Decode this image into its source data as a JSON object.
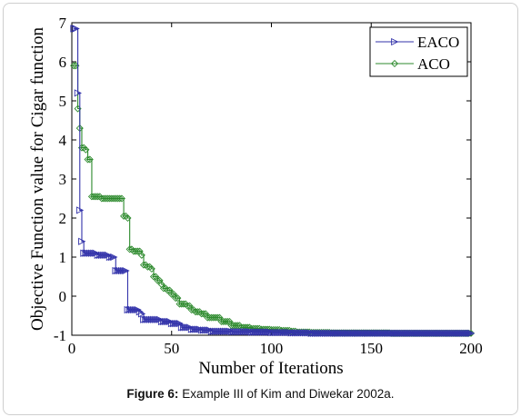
{
  "figure": {
    "caption_label": "Figure 6:",
    "caption_text": " Example III of Kim and Diwekar 2002a."
  },
  "chart_data": {
    "type": "line",
    "xlabel": "Number of Iterations",
    "ylabel": "Objective Function value for Cigar function",
    "xlim": [
      0,
      200
    ],
    "ylim": [
      -1,
      7
    ],
    "xticks": [
      "0",
      "50",
      "100",
      "150",
      "200"
    ],
    "yticks": [
      "-1",
      "0",
      "1",
      "2",
      "3",
      "4",
      "5",
      "6",
      "7"
    ],
    "legend_position": "top-right",
    "series": [
      {
        "name": "EACO",
        "color": "#3333aa",
        "marker": "triangle-right",
        "points": [
          [
            1,
            6.85
          ],
          [
            2,
            6.85
          ],
          [
            3,
            5.2
          ],
          [
            4,
            2.2
          ],
          [
            5,
            1.4
          ],
          [
            6,
            1.1
          ],
          [
            8,
            1.1
          ],
          [
            12,
            1.1
          ],
          [
            13,
            1.05
          ],
          [
            18,
            1.05
          ],
          [
            19,
            1.0
          ],
          [
            21,
            1.0
          ],
          [
            22,
            0.65
          ],
          [
            27,
            0.65
          ],
          [
            28,
            -0.35
          ],
          [
            33,
            -0.35
          ],
          [
            34,
            -0.4
          ],
          [
            35,
            -0.45
          ],
          [
            36,
            -0.6
          ],
          [
            40,
            -0.6
          ],
          [
            45,
            -0.65
          ],
          [
            50,
            -0.7
          ],
          [
            55,
            -0.8
          ],
          [
            60,
            -0.85
          ],
          [
            65,
            -0.87
          ],
          [
            70,
            -0.9
          ],
          [
            75,
            -0.9
          ],
          [
            80,
            -0.91
          ],
          [
            90,
            -0.92
          ],
          [
            100,
            -0.93
          ],
          [
            110,
            -0.94
          ],
          [
            120,
            -0.95
          ],
          [
            140,
            -0.95
          ],
          [
            160,
            -0.95
          ],
          [
            180,
            -0.95
          ],
          [
            200,
            -0.95
          ]
        ]
      },
      {
        "name": "ACO",
        "color": "#2d8a2d",
        "marker": "diamond",
        "points": [
          [
            1,
            5.9
          ],
          [
            2,
            5.9
          ],
          [
            3,
            4.8
          ],
          [
            4,
            4.3
          ],
          [
            5,
            3.8
          ],
          [
            7,
            3.75
          ],
          [
            8,
            3.5
          ],
          [
            9,
            3.5
          ],
          [
            10,
            2.55
          ],
          [
            12,
            2.55
          ],
          [
            15,
            2.5
          ],
          [
            20,
            2.5
          ],
          [
            24,
            2.5
          ],
          [
            25,
            2.5
          ],
          [
            26,
            2.05
          ],
          [
            27,
            2.05
          ],
          [
            28,
            2.0
          ],
          [
            29,
            1.2
          ],
          [
            31,
            1.15
          ],
          [
            33,
            1.15
          ],
          [
            35,
            1.05
          ],
          [
            36,
            0.8
          ],
          [
            38,
            0.75
          ],
          [
            40,
            0.7
          ],
          [
            41,
            0.5
          ],
          [
            43,
            0.4
          ],
          [
            45,
            0.3
          ],
          [
            46,
            0.2
          ],
          [
            48,
            0.15
          ],
          [
            50,
            0.05
          ],
          [
            52,
            -0.05
          ],
          [
            54,
            -0.2
          ],
          [
            58,
            -0.25
          ],
          [
            60,
            -0.35
          ],
          [
            62,
            -0.4
          ],
          [
            65,
            -0.45
          ],
          [
            68,
            -0.55
          ],
          [
            72,
            -0.55
          ],
          [
            75,
            -0.65
          ],
          [
            80,
            -0.75
          ],
          [
            85,
            -0.8
          ],
          [
            90,
            -0.83
          ],
          [
            95,
            -0.85
          ],
          [
            100,
            -0.86
          ],
          [
            105,
            -0.88
          ],
          [
            110,
            -0.9
          ],
          [
            113,
            -0.92
          ],
          [
            120,
            -0.93
          ],
          [
            130,
            -0.94
          ],
          [
            140,
            -0.94
          ],
          [
            160,
            -0.95
          ],
          [
            180,
            -0.95
          ],
          [
            200,
            -0.95
          ]
        ]
      }
    ]
  }
}
